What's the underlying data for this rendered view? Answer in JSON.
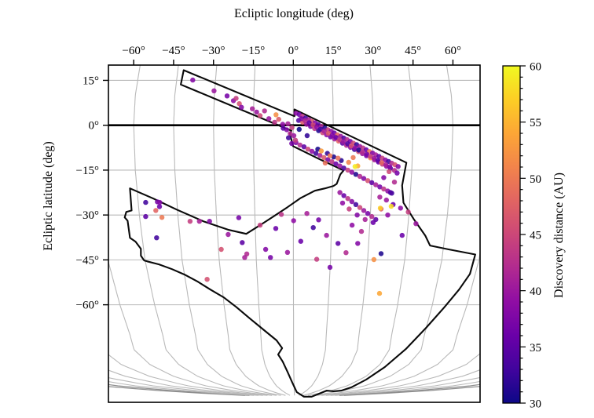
{
  "chart_data": {
    "type": "scatter",
    "xlabel": "Ecliptic longitude (deg)",
    "ylabel": "Ecliptic latitude (deg)",
    "colorbar_label": "Discovery distance (AU)",
    "xlim": [
      -69.5,
      70.2
    ],
    "ylim": [
      -92.6,
      20.1
    ],
    "xticks": [
      -60,
      -45,
      -30,
      -15,
      0,
      15,
      30,
      45,
      60
    ],
    "xtick_labels": [
      "−60°",
      "−45°",
      "−30°",
      "−15°",
      "0°",
      "15°",
      "30°",
      "45°",
      "60°"
    ],
    "yticks": [
      15,
      0,
      -15,
      -30,
      -45,
      -60
    ],
    "ytick_labels": [
      "15°",
      "0°",
      "−15°",
      "−30°",
      "−45°",
      "−60°"
    ],
    "grid": true,
    "legend_position": "right-colorbar",
    "colorbar": {
      "min": 30,
      "max": 60,
      "major_ticks": [
        30,
        35,
        40,
        45,
        50,
        55,
        60
      ],
      "minor_step": 1,
      "colormap": "plasma",
      "colormap_stops": [
        [
          0.0,
          "#0d0887"
        ],
        [
          0.1,
          "#41049d"
        ],
        [
          0.2,
          "#6a00a8"
        ],
        [
          0.3,
          "#8f0da4"
        ],
        [
          0.4,
          "#b12a90"
        ],
        [
          0.5,
          "#cc4778"
        ],
        [
          0.6,
          "#e16462"
        ],
        [
          0.7,
          "#f2844b"
        ],
        [
          0.8,
          "#fca636"
        ],
        [
          0.9,
          "#fcce25"
        ],
        [
          1.0,
          "#f0f921"
        ]
      ]
    },
    "graticule": {
      "parallels": [
        15,
        -15,
        -30,
        -45,
        -60
      ],
      "equator": 0,
      "meridian_step": 15,
      "meridian_range": [
        -165,
        165
      ],
      "pole": [
        0.5,
        -90.8
      ],
      "line_color": "#b9b9b9",
      "dark_line_color": "#8f8f8f",
      "equator_color": "#000000"
    },
    "footprint_outline": [
      [
        -41.2,
        18.4
      ],
      [
        0.4,
        3.0
      ],
      [
        0.4,
        5.3
      ],
      [
        42.5,
        -12.5
      ],
      [
        40.9,
        -20.1
      ],
      [
        41.4,
        -25.9
      ],
      [
        45.2,
        -31.3
      ],
      [
        49.6,
        -36.9
      ],
      [
        51.4,
        -40.2
      ],
      [
        58.4,
        -41.5
      ],
      [
        68.4,
        -43.2
      ],
      [
        66.4,
        -49.7
      ],
      [
        62.3,
        -54.9
      ],
      [
        56.7,
        -60.9
      ],
      [
        49.9,
        -67.7
      ],
      [
        42.3,
        -74.8
      ],
      [
        34.4,
        -80.8
      ],
      [
        27.4,
        -85.0
      ],
      [
        21.8,
        -87.6
      ],
      [
        18.0,
        -88.7
      ],
      [
        15.1,
        -88.9
      ],
      [
        12.5,
        -88.7
      ],
      [
        9.8,
        -89.7
      ],
      [
        6.9,
        -90.7
      ],
      [
        4.0,
        -90.7
      ],
      [
        1.3,
        -89.2
      ],
      [
        -0.4,
        -86.0
      ],
      [
        -2.2,
        -82.4
      ],
      [
        -4.0,
        -79.0
      ],
      [
        -5.7,
        -76.6
      ],
      [
        -4.2,
        -74.5
      ],
      [
        -6.3,
        -71.9
      ],
      [
        -11.0,
        -68.5
      ],
      [
        -16.3,
        -64.6
      ],
      [
        -21.5,
        -60.7
      ],
      [
        -26.2,
        -57.5
      ],
      [
        -31.2,
        -54.9
      ],
      [
        -35.9,
        -52.3
      ],
      [
        -40.9,
        -49.9
      ],
      [
        -45.6,
        -48.1
      ],
      [
        -50.5,
        -46.5
      ],
      [
        -54.9,
        -45.5
      ],
      [
        -56.1,
        -45.2
      ],
      [
        -57.3,
        -43.6
      ],
      [
        -57.3,
        -41.3
      ],
      [
        -59.3,
        -38.9
      ],
      [
        -61.4,
        -37.6
      ],
      [
        -62.3,
        -31.9
      ],
      [
        -63.4,
        -30.8
      ],
      [
        -62.8,
        -29.0
      ],
      [
        -60.8,
        -28.5
      ],
      [
        -61.4,
        -21.1
      ],
      [
        -52.6,
        -24.5
      ],
      [
        -43.8,
        -28.2
      ],
      [
        -33.8,
        -32.1
      ],
      [
        -24.2,
        -35.0
      ],
      [
        -17.7,
        -36.3
      ],
      [
        -12.5,
        -33.4
      ],
      [
        -7.5,
        -30.5
      ],
      [
        -2.2,
        -27.4
      ],
      [
        2.8,
        -24.3
      ],
      [
        8.1,
        -21.9
      ],
      [
        11.9,
        -21.1
      ],
      [
        15.1,
        -20.3
      ],
      [
        16.3,
        -19.6
      ],
      [
        17.7,
        -16.4
      ],
      [
        18.9,
        -15.1
      ],
      [
        9.5,
        -11.2
      ],
      [
        -0.1,
        -7.0
      ],
      [
        -1.3,
        -2.8
      ],
      [
        -0.7,
        -1.8
      ],
      [
        -42.3,
        13.6
      ]
    ],
    "points": [
      [
        -37.8,
        15.1,
        38
      ],
      [
        -29.8,
        11.5,
        40
      ],
      [
        -24.9,
        9.8,
        37
      ],
      [
        -22.5,
        8.2,
        39
      ],
      [
        -21.5,
        9.0,
        44
      ],
      [
        -20.3,
        7.2,
        46
      ],
      [
        -19.5,
        6.0,
        38
      ],
      [
        -15.4,
        5.5,
        41
      ],
      [
        -13.8,
        4.4,
        40
      ],
      [
        -12.5,
        3.2,
        45
      ],
      [
        -10.8,
        4.8,
        42
      ],
      [
        -9.2,
        2.2,
        40
      ],
      [
        -7.0,
        1.0,
        43
      ],
      [
        -6.5,
        3.5,
        52
      ],
      [
        -5.5,
        2.0,
        47
      ],
      [
        -4.0,
        0.3,
        39
      ],
      [
        -2.0,
        0.5,
        41
      ],
      [
        -0.5,
        -0.8,
        44
      ],
      [
        1.0,
        4.0,
        39
      ],
      [
        2.2,
        3.6,
        36
      ],
      [
        3.4,
        3.0,
        43
      ],
      [
        4.6,
        2.4,
        33
      ],
      [
        5.8,
        1.9,
        41
      ],
      [
        7.0,
        1.3,
        46
      ],
      [
        8.2,
        0.8,
        38
      ],
      [
        9.4,
        0.2,
        35
      ],
      [
        10.6,
        -0.4,
        42
      ],
      [
        11.8,
        -0.9,
        31
      ],
      [
        13.0,
        -1.5,
        44
      ],
      [
        14.2,
        -2.0,
        39
      ],
      [
        15.4,
        -2.6,
        36
      ],
      [
        16.6,
        -3.2,
        48
      ],
      [
        17.8,
        -3.7,
        40
      ],
      [
        19.0,
        -4.3,
        34
      ],
      [
        20.2,
        -4.8,
        42
      ],
      [
        21.4,
        -5.4,
        37
      ],
      [
        22.6,
        -6.0,
        45
      ],
      [
        23.8,
        -6.5,
        32
      ],
      [
        25.0,
        -7.1,
        40
      ],
      [
        26.2,
        -7.6,
        43
      ],
      [
        27.4,
        -8.2,
        36
      ],
      [
        28.6,
        -8.8,
        50
      ],
      [
        29.8,
        -9.3,
        38
      ],
      [
        31.0,
        -9.9,
        41
      ],
      [
        32.2,
        -10.4,
        35
      ],
      [
        33.4,
        -11.0,
        44
      ],
      [
        34.6,
        -11.6,
        39
      ],
      [
        35.8,
        -12.1,
        33
      ],
      [
        37.0,
        -12.7,
        42
      ],
      [
        38.2,
        -13.2,
        46
      ],
      [
        39.4,
        -13.8,
        38
      ],
      [
        2.0,
        1.6,
        34
      ],
      [
        3.5,
        1.0,
        47
      ],
      [
        5.0,
        0.3,
        40
      ],
      [
        6.5,
        -0.4,
        37
      ],
      [
        8.0,
        -1.1,
        43
      ],
      [
        9.5,
        -1.8,
        31
      ],
      [
        11.0,
        -2.5,
        45
      ],
      [
        12.5,
        -3.2,
        39
      ],
      [
        14.0,
        -3.9,
        36
      ],
      [
        15.5,
        -4.6,
        41
      ],
      [
        17.0,
        -5.3,
        48
      ],
      [
        18.5,
        -6.0,
        35
      ],
      [
        20.0,
        -6.7,
        42
      ],
      [
        21.5,
        -7.4,
        38
      ],
      [
        23.0,
        -8.1,
        33
      ],
      [
        24.5,
        -8.8,
        46
      ],
      [
        26.0,
        -9.5,
        40
      ],
      [
        27.5,
        -10.2,
        37
      ],
      [
        29.0,
        -10.9,
        52
      ],
      [
        30.5,
        -11.6,
        41
      ],
      [
        32.0,
        -12.3,
        36
      ],
      [
        33.5,
        -13.0,
        44
      ],
      [
        35.0,
        -13.7,
        39
      ],
      [
        36.5,
        -14.4,
        34
      ],
      [
        38.0,
        -15.1,
        42
      ],
      [
        1.0,
        -5.8,
        38
      ],
      [
        2.5,
        -6.6,
        42
      ],
      [
        4.0,
        -7.2,
        35
      ],
      [
        5.5,
        -8.0,
        45
      ],
      [
        7.0,
        -8.7,
        39
      ],
      [
        8.5,
        -9.4,
        33
      ],
      [
        10.0,
        -10.1,
        41
      ],
      [
        11.5,
        -10.8,
        47
      ],
      [
        13.0,
        -11.5,
        37
      ],
      [
        14.5,
        -12.2,
        43
      ],
      [
        16.0,
        -12.9,
        36
      ],
      [
        17.5,
        -13.6,
        40
      ],
      [
        19.0,
        -14.3,
        34
      ],
      [
        20.5,
        -15.0,
        44
      ],
      [
        22.0,
        -15.7,
        39
      ],
      [
        23.5,
        -16.4,
        31
      ],
      [
        25.0,
        -17.1,
        42
      ],
      [
        26.5,
        -17.8,
        38
      ],
      [
        28.0,
        -18.5,
        46
      ],
      [
        29.5,
        -19.2,
        35
      ],
      [
        31.0,
        -19.9,
        41
      ],
      [
        32.5,
        -20.6,
        37
      ],
      [
        34.0,
        -21.3,
        43
      ],
      [
        35.5,
        -22.0,
        39
      ],
      [
        37.0,
        -22.7,
        33
      ],
      [
        3.0,
        2.2,
        37
      ],
      [
        4.4,
        1.5,
        42
      ],
      [
        6.0,
        0.8,
        35
      ],
      [
        7.4,
        0.1,
        45
      ],
      [
        8.8,
        -0.6,
        39
      ],
      [
        10.2,
        -1.3,
        33
      ],
      [
        11.6,
        -2.0,
        41
      ],
      [
        13.2,
        -2.7,
        47
      ],
      [
        14.6,
        -3.4,
        38
      ],
      [
        16.0,
        -4.1,
        36
      ],
      [
        17.4,
        -4.8,
        43
      ],
      [
        18.8,
        -5.5,
        40
      ],
      [
        20.4,
        -6.2,
        34
      ],
      [
        21.8,
        -6.9,
        46
      ],
      [
        23.2,
        -7.6,
        39
      ],
      [
        24.6,
        -8.3,
        31
      ],
      [
        26.0,
        -9.0,
        42
      ],
      [
        27.6,
        -9.7,
        37
      ],
      [
        29.0,
        -10.4,
        44
      ],
      [
        30.4,
        -11.1,
        40
      ],
      [
        31.8,
        -11.8,
        35
      ],
      [
        33.2,
        -12.5,
        48
      ],
      [
        34.8,
        -13.2,
        41
      ],
      [
        36.2,
        -13.9,
        38
      ],
      [
        2.2,
        -1.4,
        30
      ],
      [
        5.2,
        -3.5,
        32
      ],
      [
        9.2,
        -8.0,
        30.5
      ],
      [
        12.8,
        -9.4,
        32
      ],
      [
        15.2,
        -10.6,
        30.8
      ],
      [
        18.0,
        -11.8,
        31.5
      ],
      [
        10.5,
        -8.6,
        53
      ],
      [
        13.8,
        -10.2,
        50
      ],
      [
        16.8,
        -11.0,
        49
      ],
      [
        20.8,
        -12.4,
        51
      ],
      [
        24.2,
        -13.6,
        54
      ],
      [
        12.0,
        -12.6,
        49
      ],
      [
        22.5,
        -10.8,
        50
      ],
      [
        23.2,
        -13.8,
        59
      ],
      [
        -2.5,
        -1.5,
        38
      ],
      [
        -1.2,
        -2.8,
        42
      ],
      [
        -3.8,
        -1.0,
        35
      ],
      [
        0.2,
        -3.5,
        40
      ],
      [
        -1.8,
        -4.2,
        33
      ],
      [
        0.8,
        -5.0,
        44
      ],
      [
        -0.6,
        -6.1,
        37
      ],
      [
        17.5,
        -22.5,
        40
      ],
      [
        19.0,
        -23.5,
        36
      ],
      [
        20.5,
        -24.5,
        43
      ],
      [
        22.0,
        -25.5,
        38
      ],
      [
        23.5,
        -26.5,
        33
      ],
      [
        25.0,
        -27.5,
        45
      ],
      [
        26.5,
        -28.5,
        40
      ],
      [
        28.0,
        -29.5,
        37
      ],
      [
        29.5,
        -30.5,
        42
      ],
      [
        31.0,
        -31.5,
        35
      ],
      [
        18.5,
        -26.0,
        39
      ],
      [
        21.0,
        -28.0,
        44
      ],
      [
        24.0,
        -30.0,
        38
      ],
      [
        27.0,
        -31.5,
        41
      ],
      [
        30.0,
        -32.5,
        36
      ],
      [
        33.0,
        -28.0,
        47
      ],
      [
        35.0,
        -25.0,
        40
      ],
      [
        36.5,
        -22.5,
        34
      ],
      [
        38.0,
        -19.0,
        42
      ],
      [
        34.0,
        -17.5,
        38
      ],
      [
        36.0,
        -15.5,
        45
      ],
      [
        39.0,
        -16.0,
        37
      ],
      [
        32.5,
        -24.0,
        41
      ],
      [
        35.5,
        -30.0,
        39
      ],
      [
        37.5,
        -26.5,
        36
      ],
      [
        32.7,
        -27.7,
        57
      ],
      [
        36.8,
        -27.1,
        58
      ],
      [
        -55.5,
        -25.8,
        33
      ],
      [
        -51.1,
        -25.6,
        37
      ],
      [
        -50.2,
        -25.8,
        38
      ],
      [
        -50.3,
        -27.2,
        36
      ],
      [
        -51.7,
        -28.5,
        48
      ],
      [
        -49.4,
        -30.8,
        50
      ],
      [
        -55.5,
        -30.5,
        35
      ],
      [
        -51.4,
        -37.6,
        33
      ],
      [
        -38.8,
        -32.1,
        44
      ],
      [
        -35.3,
        -32.1,
        41
      ],
      [
        -31.5,
        -32.1,
        38
      ],
      [
        -27.1,
        -41.5,
        46
      ],
      [
        -32.4,
        -51.5,
        46
      ],
      [
        -24.5,
        -36.5,
        40
      ],
      [
        -20.5,
        -30.9,
        37
      ],
      [
        -17.5,
        -43.0,
        42
      ],
      [
        -4.5,
        -29.8,
        43
      ],
      [
        0.1,
        -31.9,
        39
      ],
      [
        -6.6,
        -34.5,
        36
      ],
      [
        -19.2,
        -39.2,
        35
      ],
      [
        -10.4,
        -41.5,
        38
      ],
      [
        -18.3,
        -44.2,
        41
      ],
      [
        -8.6,
        -44.2,
        37
      ],
      [
        -12.5,
        -33.4,
        44
      ],
      [
        5.1,
        -29.5,
        41
      ],
      [
        9.5,
        -31.6,
        37
      ],
      [
        7.5,
        -34.2,
        33
      ],
      [
        12.5,
        -36.8,
        40
      ],
      [
        16.8,
        -39.5,
        35
      ],
      [
        19.8,
        -42.6,
        42
      ],
      [
        24.2,
        -39.5,
        38
      ],
      [
        25.6,
        -35.5,
        42
      ],
      [
        22.1,
        -33.4,
        39
      ],
      [
        30.3,
        -44.9,
        52
      ],
      [
        32.4,
        -56.2,
        54
      ],
      [
        33.0,
        -42.9,
        31
      ],
      [
        40.3,
        -27.7,
        39
      ],
      [
        43.2,
        -29.0,
        44
      ],
      [
        46.1,
        -32.9,
        40
      ],
      [
        40.9,
        -36.8,
        36
      ],
      [
        2.8,
        -38.8,
        36
      ],
      [
        -2.2,
        -42.5,
        40
      ],
      [
        8.8,
        -44.8,
        44
      ],
      [
        13.8,
        -47.5,
        37
      ]
    ]
  }
}
